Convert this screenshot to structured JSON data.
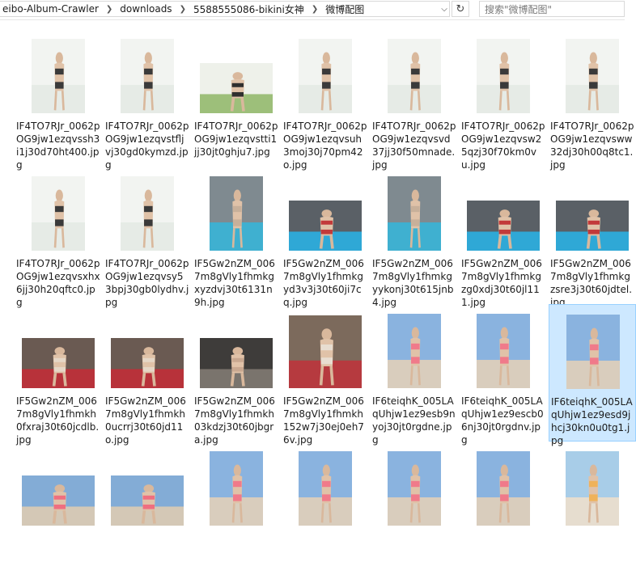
{
  "address_bar": {
    "crumbs": [
      "eibo-Album-Crawler",
      "downloads",
      "5588555086-bikini女神",
      "微博配图"
    ]
  },
  "search": {
    "placeholder": "搜索\"微博配图\""
  },
  "files": [
    {
      "name": "IF4TO7RJr_0062pOG9jw1ezqvssh3i1j30d70ht400.jpg",
      "thumb": "portrait-white"
    },
    {
      "name": "IF4TO7RJr_0062pOG9jw1ezqvstfljvj30gd0kymzd.jpg",
      "thumb": "portrait-white"
    },
    {
      "name": "IF4TO7RJr_0062pOG9jw1ezqvstti1jj30jt0ghju7.jpg",
      "thumb": "landscape-white"
    },
    {
      "name": "IF4TO7RJr_0062pOG9jw1ezqvsuh3moj30j70pm42o.jpg",
      "thumb": "portrait-white"
    },
    {
      "name": "IF4TO7RJr_0062pOG9jw1ezqvsvd37jj30f50mnade.jpg",
      "thumb": "portrait-white"
    },
    {
      "name": "IF4TO7RJr_0062pOG9jw1ezqvsw25qzj30f70km0vu.jpg",
      "thumb": "portrait-white"
    },
    {
      "name": "IF4TO7RJr_0062pOG9jw1ezqvsww32dj30h00q8tc1.jpg",
      "thumb": "portrait-white"
    },
    {
      "name": "IF4TO7RJr_0062pOG9jw1ezqvsxhx6jj30h20qftc0.jpg",
      "thumb": "portrait-white"
    },
    {
      "name": "IF4TO7RJr_0062pOG9jw1ezqvsy53bpj30gb0lydhv.jpg",
      "thumb": "portrait-white"
    },
    {
      "name": "IF5Gw2nZM_0067m8gVly1fhmkgxyzdvj30t6131n9h.jpg",
      "thumb": "portrait-pool"
    },
    {
      "name": "IF5Gw2nZM_0067m8gVly1fhmkgyd3v3j30t60ji7cq.jpg",
      "thumb": "landscape-pool"
    },
    {
      "name": "IF5Gw2nZM_0067m8gVly1fhmkgyykonj30t615jnb4.jpg",
      "thumb": "portrait-pool"
    },
    {
      "name": "IF5Gw2nZM_0067m8gVly1fhmkgzg0xdj30t60jl111.jpg",
      "thumb": "landscape-pool"
    },
    {
      "name": "IF5Gw2nZM_0067m8gVly1fhmkgzsre3j30t60jdtel.jpg",
      "thumb": "landscape-pool"
    },
    {
      "name": "IF5Gw2nZM_0067m8gVly1fhmkh0fxraj30t60jcdlb.jpg",
      "thumb": "landscape-red"
    },
    {
      "name": "IF5Gw2nZM_0067m8gVly1fhmkh0ucrrj30t60jd11o.jpg",
      "thumb": "landscape-red"
    },
    {
      "name": "IF5Gw2nZM_0067m8gVly1fhmkh03kdzj30t60jbgra.jpg",
      "thumb": "landscape-dark"
    },
    {
      "name": "IF5Gw2nZM_0067m8gVly1fhmkh152w7j30ej0eh76v.jpg",
      "thumb": "square-red"
    },
    {
      "name": "IF6teiqhK_005LAqUhjw1ez9esb9nyoj30jt0rgdne.jpg",
      "thumb": "portrait-beach"
    },
    {
      "name": "IF6teiqhK_005LAqUhjw1ez9escb06nj30jt0rgdnv.jpg",
      "thumb": "portrait-beach"
    },
    {
      "name": "IF6teiqhK_005LAqUhjw1ez9esd9jhcj30kn0u0tg1.jpg",
      "thumb": "portrait-beach"
    },
    {
      "name": "",
      "thumb": "landscape-beach"
    },
    {
      "name": "",
      "thumb": "landscape-beach"
    },
    {
      "name": "",
      "thumb": "portrait-beach"
    },
    {
      "name": "",
      "thumb": "portrait-beach"
    },
    {
      "name": "",
      "thumb": "portrait-beach"
    },
    {
      "name": "",
      "thumb": "portrait-beach"
    },
    {
      "name": "",
      "thumb": "portrait-sand"
    }
  ],
  "selected_index": 20
}
